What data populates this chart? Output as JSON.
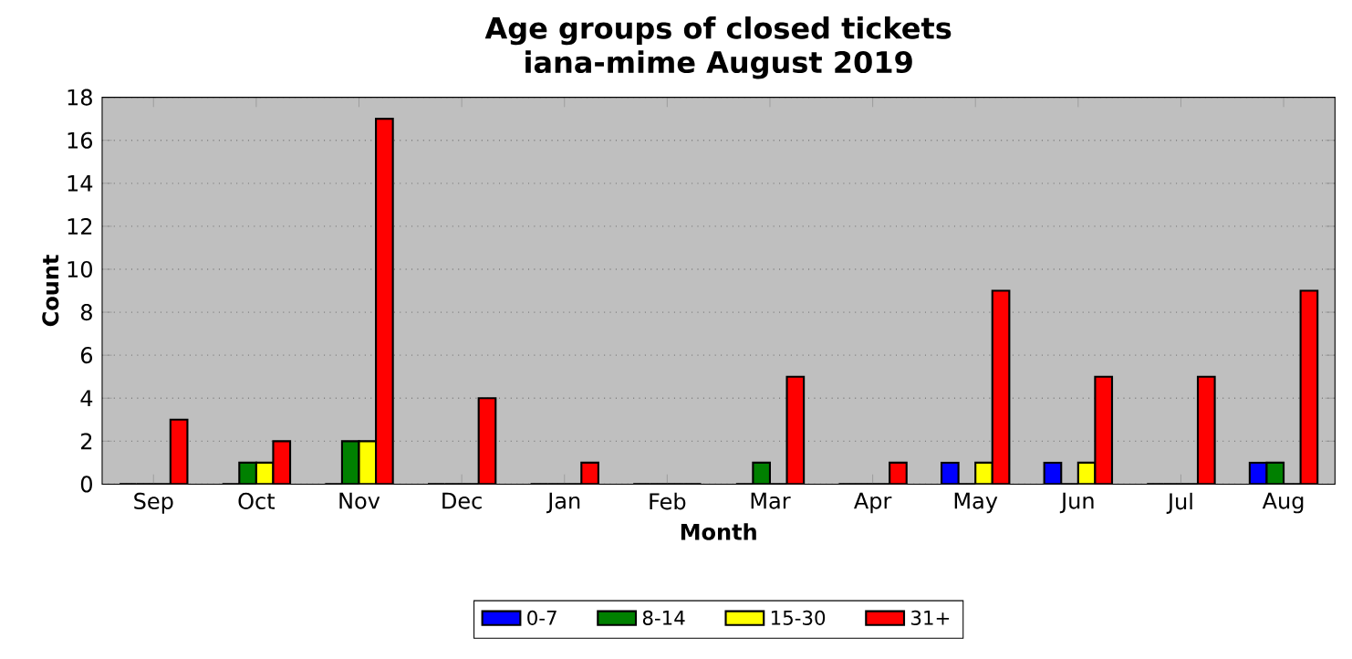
{
  "chart_data": {
    "type": "bar",
    "title": "Age groups of closed tickets\niana-mime August 2019",
    "xlabel": "Month",
    "ylabel": "Count",
    "categories": [
      "Sep",
      "Oct",
      "Nov",
      "Dec",
      "Jan",
      "Feb",
      "Mar",
      "Apr",
      "May",
      "Jun",
      "Jul",
      "Aug"
    ],
    "series": [
      {
        "name": "0-7",
        "color": "#0000ff",
        "values": [
          0,
          0,
          0,
          0,
          0,
          0,
          0,
          0,
          1,
          1,
          0,
          1
        ]
      },
      {
        "name": "8-14",
        "color": "#008000",
        "values": [
          0,
          1,
          2,
          0,
          0,
          0,
          1,
          0,
          0,
          0,
          0,
          1
        ]
      },
      {
        "name": "15-30",
        "color": "#ffff00",
        "values": [
          0,
          1,
          2,
          0,
          0,
          0,
          0,
          0,
          1,
          1,
          0,
          0
        ]
      },
      {
        "name": "31+",
        "color": "#ff0000",
        "values": [
          3,
          2,
          17,
          4,
          1,
          0,
          5,
          1,
          9,
          5,
          5,
          9
        ]
      }
    ],
    "ylim": [
      0,
      18
    ],
    "yticks": [
      0,
      2,
      4,
      6,
      8,
      10,
      12,
      14,
      16,
      18
    ],
    "grid": "y",
    "legend": "bottom"
  }
}
